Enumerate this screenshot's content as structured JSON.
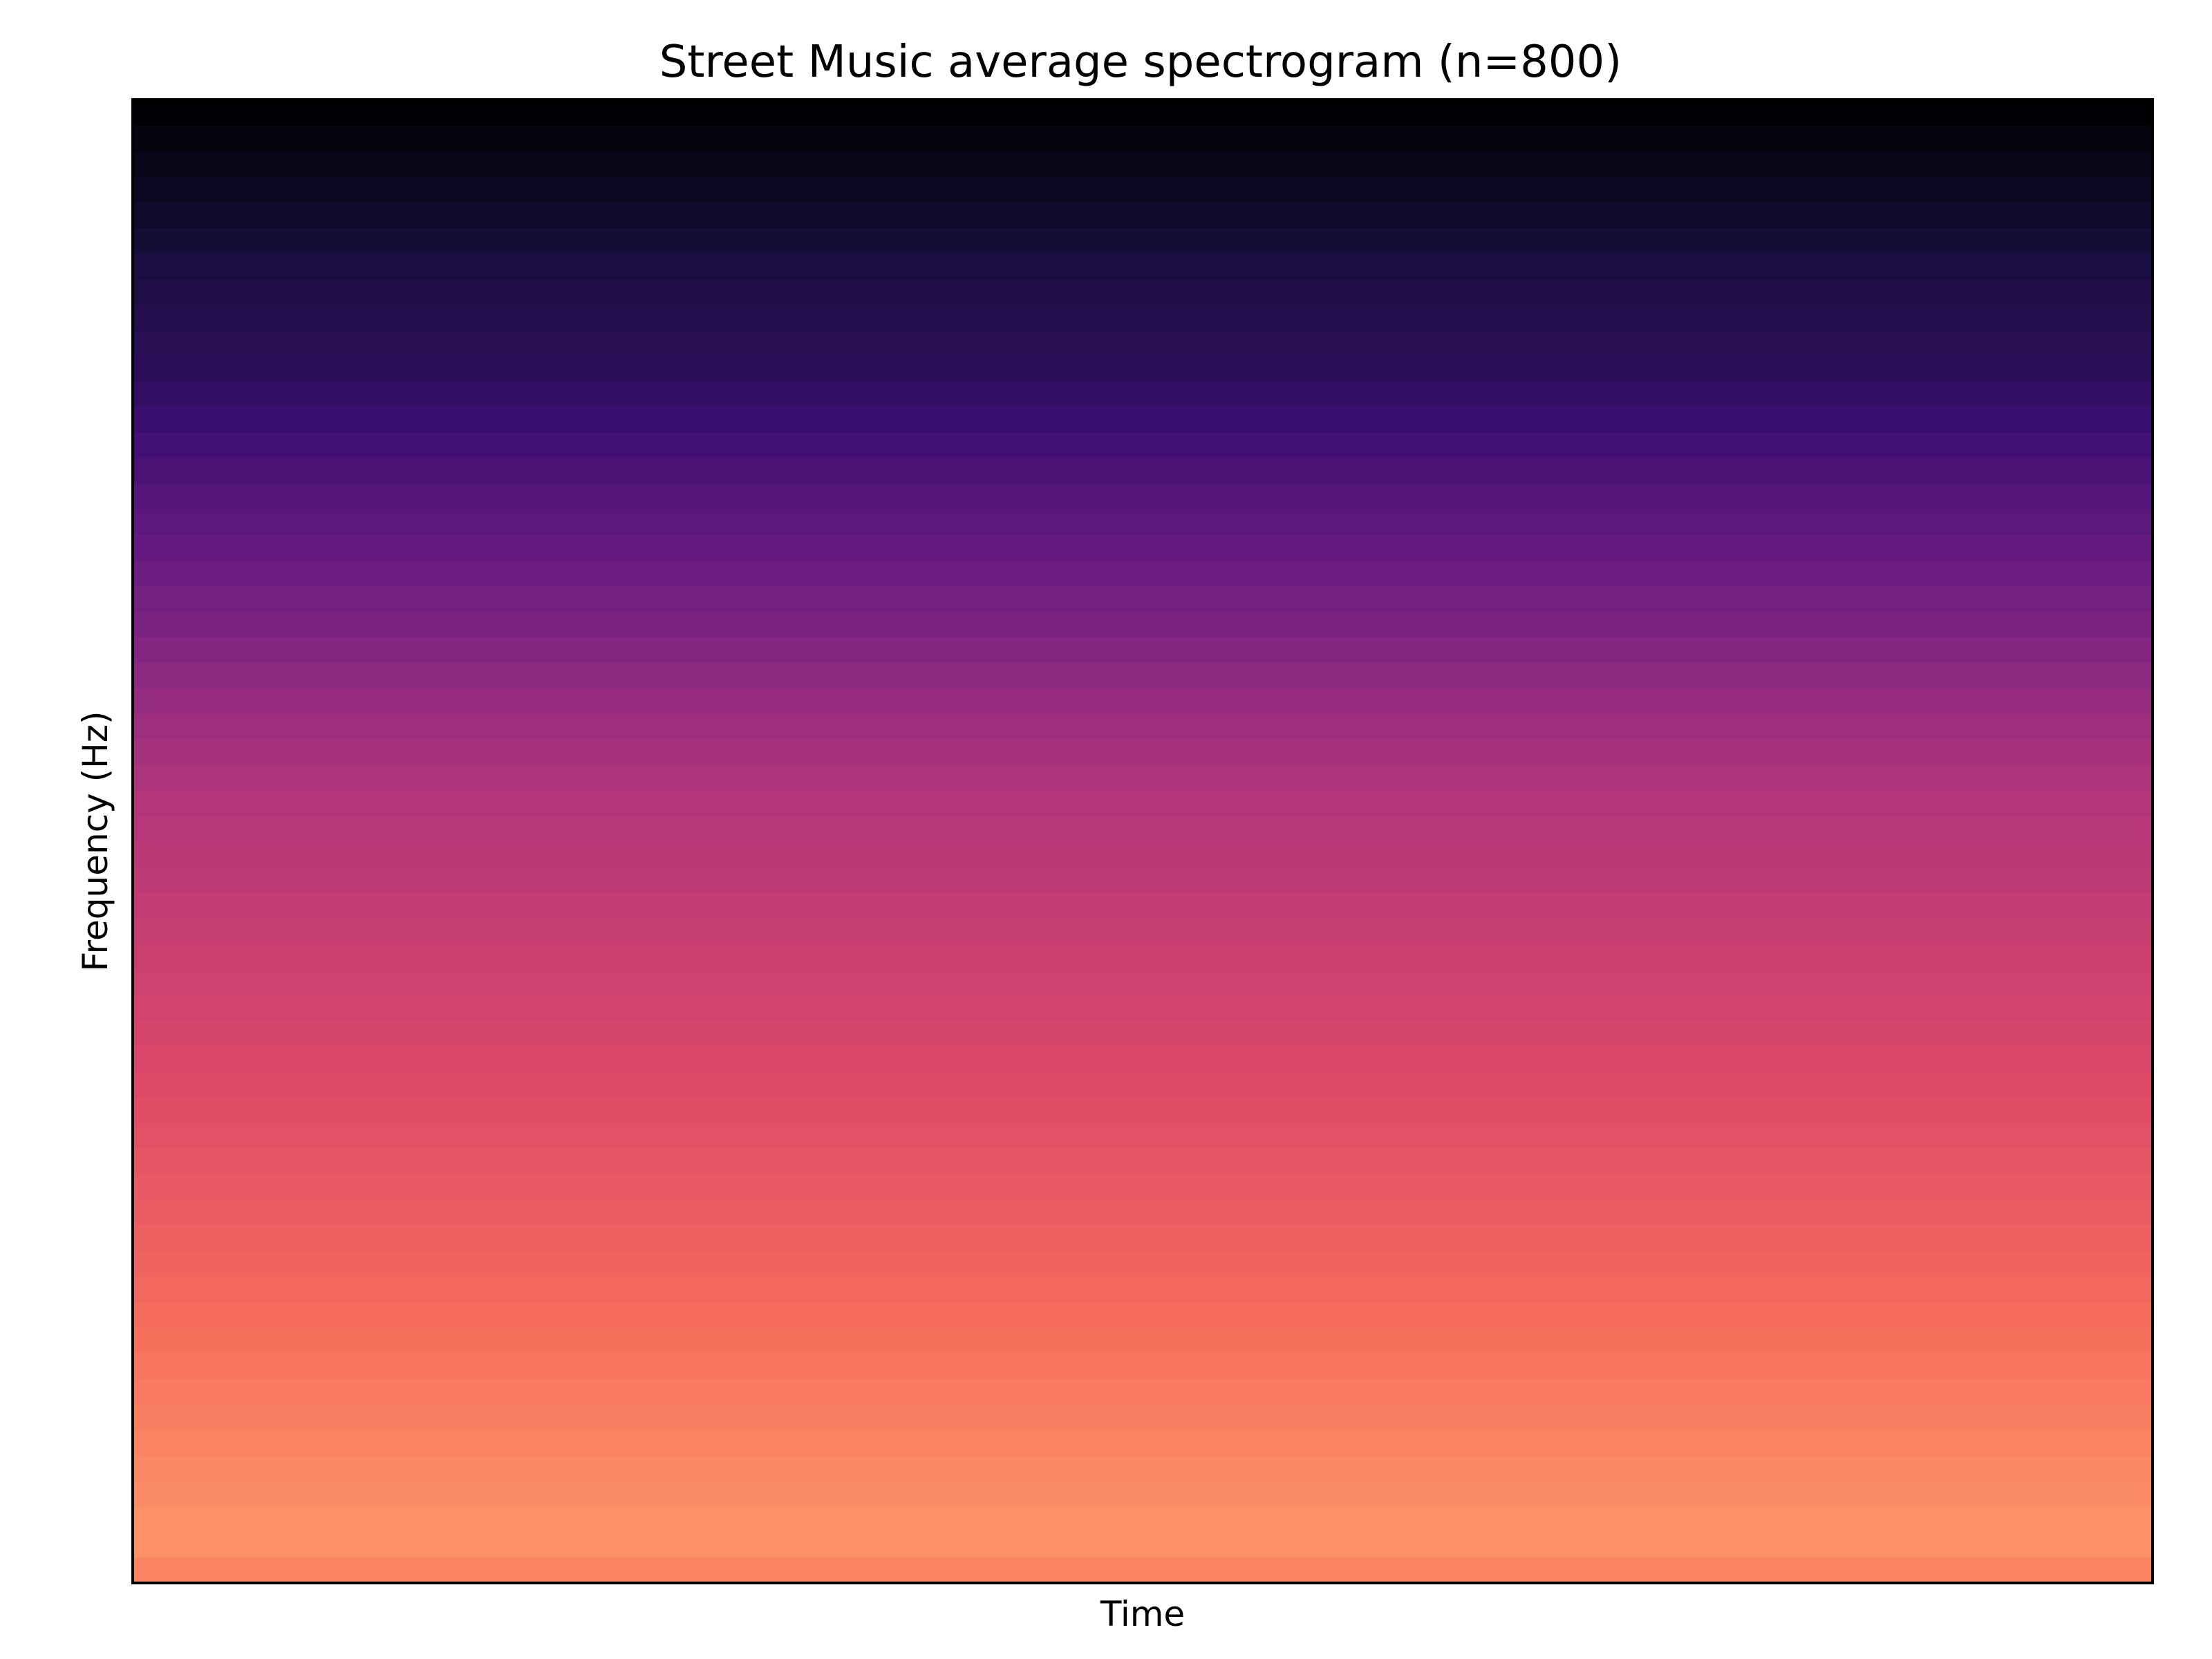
{
  "chart_data": {
    "type": "heatmap",
    "title": "Street Music average spectrogram (n=800)",
    "xlabel": "Time",
    "ylabel": "Frequency (Hz)",
    "colormap": "magma",
    "grid": false,
    "ticks": false,
    "value_range": [
      0,
      1
    ],
    "rows_low_to_high_frequency": [
      0.74,
      0.77,
      0.77,
      0.76,
      0.75,
      0.74,
      0.73,
      0.72,
      0.71,
      0.7,
      0.69,
      0.68,
      0.67,
      0.66,
      0.65,
      0.64,
      0.63,
      0.62,
      0.61,
      0.6,
      0.59,
      0.58,
      0.57,
      0.56,
      0.55,
      0.54,
      0.53,
      0.52,
      0.51,
      0.5,
      0.49,
      0.48,
      0.46,
      0.44,
      0.42,
      0.4,
      0.38,
      0.36,
      0.34,
      0.32,
      0.3,
      0.28,
      0.26,
      0.24,
      0.22,
      0.2,
      0.18,
      0.16,
      0.15,
      0.14,
      0.13,
      0.12,
      0.1,
      0.08,
      0.06,
      0.04,
      0.02,
      0.0
    ]
  }
}
